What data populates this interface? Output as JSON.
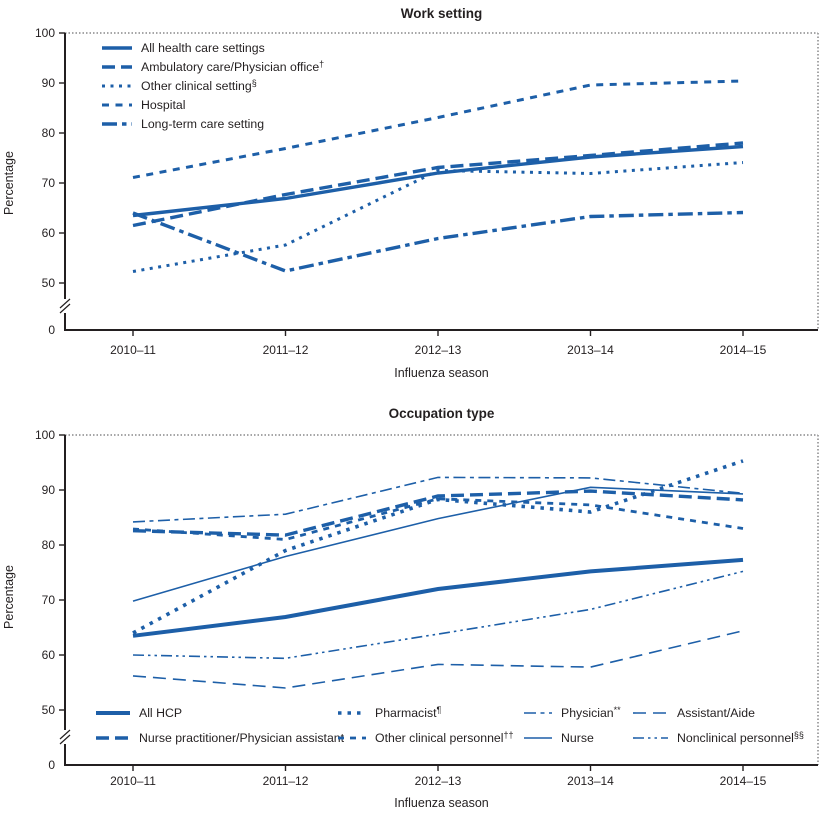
{
  "colors": {
    "line_blue": "#1d5fa8",
    "text": "#231f20",
    "frame": "#4d4d4f"
  },
  "axis": {
    "y_label": "Percentage",
    "x_label": "Influenza season",
    "y_ticks": [
      100,
      90,
      80,
      70,
      60,
      50
    ],
    "y_zero": "0"
  },
  "chart_data": [
    {
      "type": "line",
      "title": "Work setting",
      "xlabel": "Influenza season",
      "ylabel": "Percentage",
      "ylim": [
        50,
        100
      ],
      "axis_break": true,
      "legend_position": "upper-left",
      "grid": false,
      "categories": [
        "2010–11",
        "2011–12",
        "2012–13",
        "2013–14",
        "2014–15"
      ],
      "series": [
        {
          "name": "All health care settings",
          "sup": "",
          "style": "solid-thick",
          "values": [
            63.5,
            66.9,
            72.0,
            75.2,
            77.3
          ]
        },
        {
          "name": "Ambulatory care/Physician office",
          "sup": "†",
          "style": "dash-thick",
          "values": [
            61.5,
            67.7,
            73.1,
            75.5,
            78.0
          ]
        },
        {
          "name": "Other clinical setting",
          "sup": "§",
          "style": "dot",
          "values": [
            52.3,
            57.6,
            72.5,
            71.9,
            74.1
          ]
        },
        {
          "name": "Hospital",
          "sup": "",
          "style": "sqdash",
          "values": [
            71.1,
            76.9,
            83.1,
            89.6,
            90.4
          ]
        },
        {
          "name": "Long-term care setting",
          "sup": "",
          "style": "dashdot-thick",
          "values": [
            64.0,
            52.4,
            58.9,
            63.3,
            64.1
          ]
        }
      ]
    },
    {
      "type": "line",
      "title": "Occupation type",
      "xlabel": "Influenza season",
      "ylabel": "Percentage",
      "ylim": [
        50,
        100
      ],
      "axis_break": true,
      "legend_position": "bottom-two-rows",
      "grid": false,
      "categories": [
        "2010–11",
        "2011–12",
        "2012–13",
        "2013–14",
        "2014–15"
      ],
      "series": [
        {
          "name": "All HCP",
          "sup": "",
          "style": "solid-xthick",
          "values": [
            63.5,
            66.9,
            72.0,
            75.2,
            77.3
          ]
        },
        {
          "name": "Nurse practitioner/Physician assistant",
          "sup": "",
          "style": "dash-thick",
          "values": [
            82.6,
            81.8,
            88.9,
            89.8,
            88.2
          ]
        },
        {
          "name": "Pharmacist",
          "sup": "¶",
          "style": "dot-thick",
          "values": [
            64.0,
            79.0,
            88.3,
            86.0,
            95.3
          ]
        },
        {
          "name": "Other clinical personnel",
          "sup": "††",
          "style": "sqdash-med",
          "values": [
            82.9,
            81.0,
            88.4,
            87.3,
            83.0
          ]
        },
        {
          "name": "Physician",
          "sup": "**",
          "style": "dashdot-thin",
          "values": [
            84.2,
            85.6,
            92.3,
            92.2,
            89.4
          ]
        },
        {
          "name": "Nurse",
          "sup": "",
          "style": "solid-thin",
          "values": [
            69.8,
            77.9,
            84.8,
            90.5,
            89.3
          ]
        },
        {
          "name": "Assistant/Aide",
          "sup": "",
          "style": "dash-thin",
          "values": [
            56.2,
            54.0,
            58.3,
            57.8,
            64.4
          ]
        },
        {
          "name": "Nonclinical personnel",
          "sup": "§§",
          "style": "dashdotdot-thin",
          "values": [
            60.0,
            59.4,
            63.8,
            68.3,
            75.2
          ]
        }
      ]
    }
  ]
}
